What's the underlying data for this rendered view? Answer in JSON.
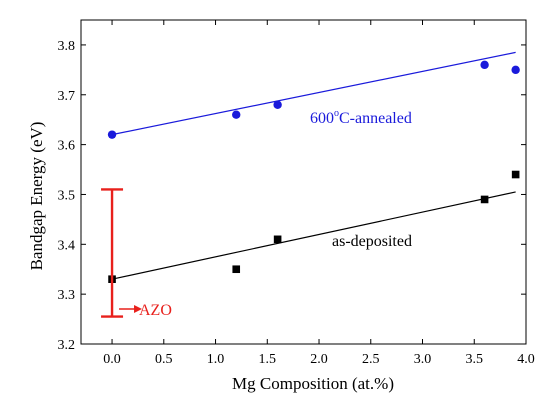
{
  "chart_data": {
    "type": "scatter",
    "xlabel": "Mg Composition (at.%)",
    "ylabel": "Bandgap Energy (eV)",
    "xlim": [
      -0.3,
      4.0
    ],
    "ylim": [
      3.2,
      3.85
    ],
    "x_ticks": [
      0.0,
      0.5,
      1.0,
      1.5,
      2.0,
      2.5,
      3.0,
      3.5,
      4.0
    ],
    "x_tick_labels": [
      "0.0",
      "0.5",
      "1.0",
      "1.5",
      "2.0",
      "2.5",
      "3.0",
      "3.5",
      "4.0"
    ],
    "y_ticks": [
      3.2,
      3.3,
      3.4,
      3.5,
      3.6,
      3.7,
      3.8
    ],
    "y_tick_labels": [
      "3.2",
      "3.3",
      "3.4",
      "3.5",
      "3.6",
      "3.7",
      "3.8"
    ],
    "grid": false,
    "series": [
      {
        "name": "600°C-annealed",
        "color": "#1a1adb",
        "marker": "circle",
        "points": [
          {
            "x": 0.0,
            "y": 3.62
          },
          {
            "x": 1.2,
            "y": 3.66
          },
          {
            "x": 1.6,
            "y": 3.68
          },
          {
            "x": 3.6,
            "y": 3.76
          },
          {
            "x": 3.9,
            "y": 3.75
          }
        ],
        "fit_line": [
          {
            "x": 0.0,
            "y": 3.62
          },
          {
            "x": 3.9,
            "y": 3.785
          }
        ]
      },
      {
        "name": "as-deposited",
        "color": "#000000",
        "marker": "square",
        "points": [
          {
            "x": 0.0,
            "y": 3.33
          },
          {
            "x": 1.2,
            "y": 3.35
          },
          {
            "x": 1.6,
            "y": 3.41
          },
          {
            "x": 3.6,
            "y": 3.49
          },
          {
            "x": 3.9,
            "y": 3.54
          }
        ],
        "fit_line": [
          {
            "x": 0.0,
            "y": 3.33
          },
          {
            "x": 3.9,
            "y": 3.505
          }
        ]
      }
    ],
    "annotations": {
      "annealed": {
        "base": "600",
        "sup": "o",
        "rest": "C-annealed",
        "color": "#1a1adb"
      },
      "as_deposited": {
        "text": "as-deposited",
        "color": "#000000"
      },
      "azo": {
        "text": "AZO",
        "color": "#e8201c",
        "x": 0.0,
        "y_low": 3.255,
        "y_high": 3.51
      }
    }
  }
}
